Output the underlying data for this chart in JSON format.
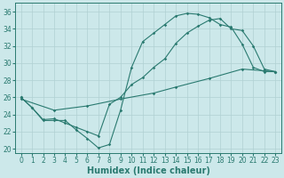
{
  "xlabel": "Humidex (Indice chaleur)",
  "bg_color": "#cce8ea",
  "grid_color": "#b0d0d3",
  "line_color": "#2a7a70",
  "xlim": [
    -0.5,
    23.5
  ],
  "ylim": [
    19.5,
    37.0
  ],
  "xticks": [
    0,
    1,
    2,
    3,
    4,
    5,
    6,
    7,
    8,
    9,
    10,
    11,
    12,
    13,
    14,
    15,
    16,
    17,
    18,
    19,
    20,
    21,
    22,
    23
  ],
  "yticks": [
    20,
    22,
    24,
    26,
    28,
    30,
    32,
    34,
    36
  ],
  "line1_x": [
    0,
    1,
    2,
    3,
    4,
    5,
    6,
    7,
    8,
    9,
    10,
    11,
    12,
    13,
    14,
    15,
    16,
    17,
    18,
    19,
    20,
    21,
    22,
    23
  ],
  "line1_y": [
    26.0,
    24.8,
    23.3,
    23.3,
    23.3,
    22.2,
    21.2,
    20.1,
    20.5,
    24.5,
    29.5,
    32.5,
    33.5,
    34.5,
    35.5,
    35.8,
    35.7,
    35.3,
    34.5,
    34.2,
    32.2,
    29.5,
    29.0,
    29.0
  ],
  "line2_x": [
    0,
    1,
    2,
    3,
    4,
    5,
    6,
    7,
    8,
    9,
    10,
    11,
    12,
    13,
    14,
    15,
    16,
    17,
    18,
    19,
    20,
    21,
    22,
    23
  ],
  "line2_y": [
    26.0,
    24.8,
    23.4,
    23.5,
    23.0,
    22.5,
    22.0,
    21.5,
    25.2,
    26.0,
    27.5,
    28.3,
    29.5,
    30.5,
    32.3,
    33.5,
    34.3,
    35.0,
    35.2,
    34.0,
    33.8,
    32.0,
    29.3,
    29.0
  ],
  "line3_x": [
    0,
    3,
    6,
    9,
    12,
    14,
    17,
    20,
    23
  ],
  "line3_y": [
    25.8,
    24.5,
    25.0,
    25.8,
    26.5,
    27.2,
    28.2,
    29.3,
    29.0
  ],
  "marker": "D",
  "markersize": 1.8,
  "linewidth": 0.8,
  "xlabel_fontsize": 7,
  "tick_fontsize": 5.5
}
